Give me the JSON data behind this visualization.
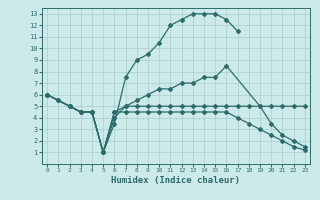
{
  "title": "",
  "xlabel": "Humidex (Indice chaleur)",
  "bg_color": "#cceaea",
  "grid_color": "#aacccc",
  "line_color": "#2e6b6b",
  "xlim": [
    -0.5,
    23.5
  ],
  "ylim": [
    0,
    13.5
  ],
  "xticks": [
    0,
    1,
    2,
    3,
    4,
    5,
    6,
    7,
    8,
    9,
    10,
    11,
    12,
    13,
    14,
    15,
    16,
    17,
    18,
    19,
    20,
    21,
    22,
    23
  ],
  "yticks": [
    1,
    2,
    3,
    4,
    5,
    6,
    7,
    8,
    9,
    10,
    11,
    12,
    13
  ],
  "line1_x": [
    0,
    1,
    2,
    3,
    4,
    5,
    6,
    7,
    8,
    9,
    10,
    11,
    12,
    13,
    14,
    15,
    16,
    17
  ],
  "line1_y": [
    6,
    5.5,
    5,
    4.5,
    4.5,
    1,
    3.5,
    7.5,
    9,
    9.5,
    10.5,
    12,
    12.5,
    13,
    13,
    13,
    12.5,
    11.5
  ],
  "line2_x": [
    0,
    1,
    2,
    3,
    4,
    5,
    6,
    7,
    8,
    9,
    10,
    11,
    12,
    13,
    14,
    15,
    16,
    17,
    18,
    19,
    20,
    21,
    22,
    23
  ],
  "line2_y": [
    6,
    5.5,
    5,
    4.5,
    4.5,
    1,
    4.5,
    5,
    5,
    5,
    5,
    5,
    5,
    5,
    5,
    5,
    5,
    5,
    5,
    5,
    5,
    5,
    5,
    5
  ],
  "line3_x": [
    0,
    2,
    3,
    4,
    5,
    6,
    7,
    8,
    9,
    10,
    11,
    12,
    13,
    14,
    15,
    16,
    17,
    18,
    19,
    20,
    21,
    22,
    23
  ],
  "line3_y": [
    6,
    5,
    4.5,
    4.5,
    1,
    4.5,
    4.5,
    4.5,
    4.5,
    4.5,
    4.5,
    4.5,
    4.5,
    4.5,
    4.5,
    4.5,
    4.0,
    3.5,
    3.0,
    2.5,
    2.0,
    1.5,
    1.2
  ],
  "line4_x": [
    0,
    2,
    3,
    4,
    5,
    6,
    7,
    8,
    9,
    10,
    11,
    12,
    13,
    14,
    15,
    16,
    19,
    20,
    21,
    22,
    23
  ],
  "line4_y": [
    6,
    5,
    4.5,
    4.5,
    1,
    4.0,
    5.0,
    5.5,
    6.0,
    6.5,
    6.5,
    7.0,
    7.0,
    7.5,
    7.5,
    8.5,
    5.0,
    3.5,
    2.5,
    2.0,
    1.5
  ]
}
